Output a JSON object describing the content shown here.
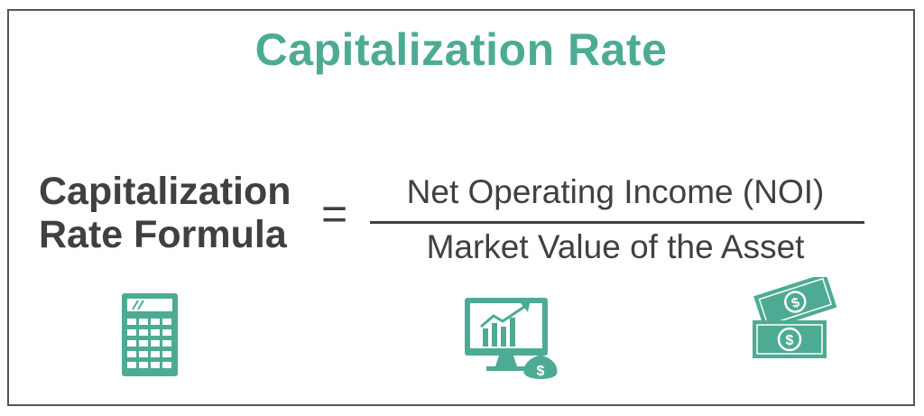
{
  "title": "Capitalization Rate",
  "formula": {
    "lhs_line1": "Capitalization",
    "lhs_line2": "Rate Formula",
    "operator": "=",
    "numerator": "Net Operating Income (NOI)",
    "denominator": "Market Value of the Asset"
  },
  "icons": [
    "calculator-icon",
    "growth-chart-monitor-icon",
    "money-bills-icon"
  ],
  "colors": {
    "accent": "#4dab93",
    "text": "#404040",
    "border": "#555555"
  }
}
